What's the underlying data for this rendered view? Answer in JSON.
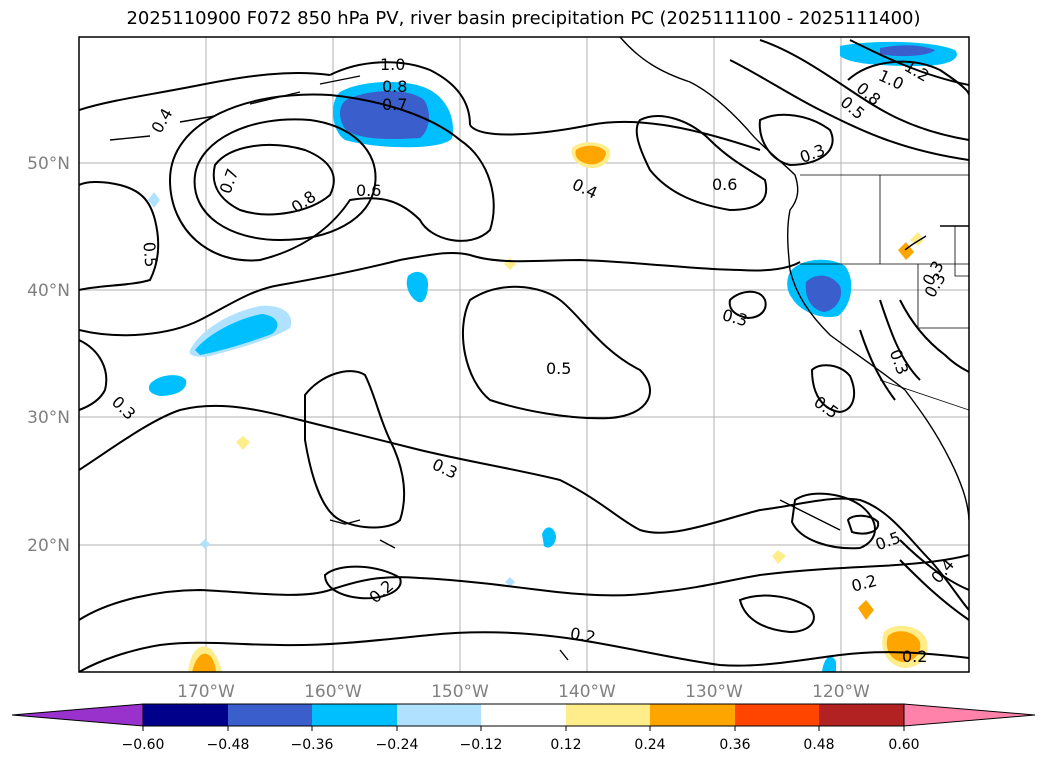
{
  "title": "2025110900 F072 850 hPa PV, river basin precipitation PC (2025111100 - 2025111400)",
  "lon_labels": [
    "170°W",
    "160°W",
    "150°W",
    "140°W",
    "130°W",
    "120°W"
  ],
  "lat_labels": [
    "50°N",
    "40°N",
    "30°N",
    "20°N"
  ],
  "contour_labels": [
    "1.0",
    "0.8",
    "0.7",
    "0.4",
    "0.7",
    "0.8",
    "0.6",
    "0.5",
    "0.4",
    "0.6",
    "0.3",
    "1.0",
    "0.8",
    "0.5",
    "1.2",
    "0.3",
    "0.5",
    "0.3",
    "0.3",
    "0.5",
    "0.3",
    "0.2",
    "0.2",
    "0.5",
    "0.2",
    "0.4",
    "0.2",
    "0.3",
    "0.3"
  ],
  "colorbar": {
    "ticks": [
      "−0.60",
      "−0.48",
      "−0.36",
      "−0.24",
      "−0.12",
      "0.12",
      "0.24",
      "0.36",
      "0.48",
      "0.60"
    ],
    "colors": [
      "#9932cc",
      "#00008b",
      "#3a5fcd",
      "#00bfff",
      "#b0e2ff",
      "#ffffff",
      "#ffec8b",
      "#ffa500",
      "#ff4500",
      "#b22222",
      "#ff82ab"
    ]
  }
}
